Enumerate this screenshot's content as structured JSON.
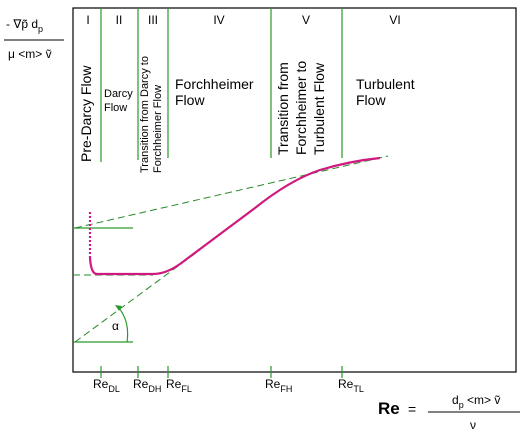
{
  "y_label": {
    "numerator": "- ∇p̃ d",
    "numerator_sub": "p",
    "denominator": "μ <m> ṽ"
  },
  "regions": [
    {
      "numeral": "I",
      "label": "Pre-Darcy Flow"
    },
    {
      "numeral": "II",
      "label_lines": [
        "Darcy",
        "Flow"
      ]
    },
    {
      "numeral": "III",
      "label_lines": [
        "Transition from Darcy to",
        "Forchheimer Flow"
      ]
    },
    {
      "numeral": "IV",
      "label_lines": [
        "Forchheimer",
        "Flow"
      ]
    },
    {
      "numeral": "V",
      "label_lines": [
        "Transition from",
        "Forchheimer to",
        "Turbulent Flow"
      ]
    },
    {
      "numeral": "VI",
      "label_lines": [
        "Turbulent",
        "Flow"
      ]
    }
  ],
  "ticks": [
    {
      "base": "Re",
      "sub": "DL"
    },
    {
      "base": "Re",
      "sub": "DH"
    },
    {
      "base": "Re",
      "sub": "FL"
    },
    {
      "base": "Re",
      "sub": "FH"
    },
    {
      "base": "Re",
      "sub": "TL"
    }
  ],
  "angle": "α",
  "x_label": {
    "name": "Re",
    "equals": "=",
    "numerator": "d",
    "numerator_sub": "p",
    "numerator_rest": " <m> ṽ",
    "denominator": "ν"
  }
}
